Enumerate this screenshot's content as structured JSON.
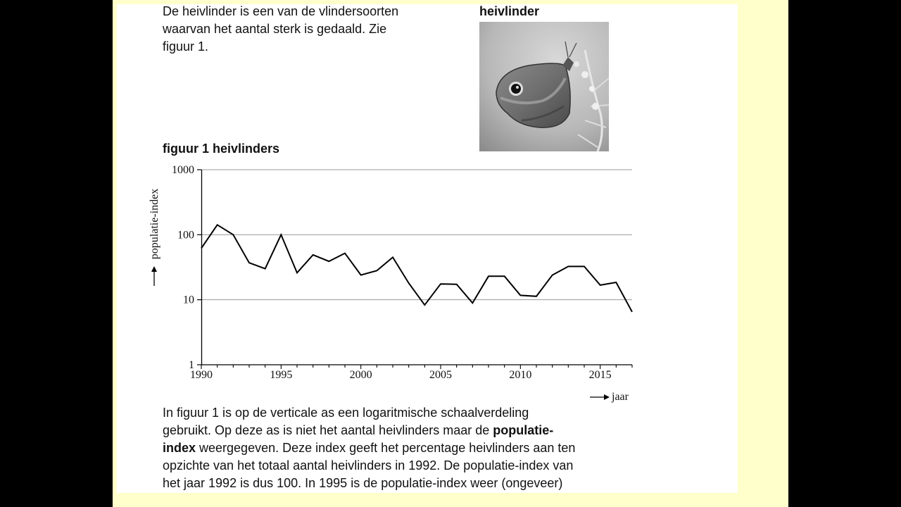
{
  "intro": {
    "lines": [
      "De heivlinder is een van de vlindersoorten",
      "waarvan het aantal sterk is gedaald. Zie",
      "figuur 1."
    ]
  },
  "photo": {
    "title": "heivlinder",
    "icon": "butterfly-photo"
  },
  "figure": {
    "title": "figuur 1 heivlinders"
  },
  "chart_data": {
    "type": "line",
    "ylabel": "populatie-index",
    "xlabel": "jaar",
    "y_scale": "log",
    "ylim": [
      1,
      1000
    ],
    "xlim": [
      1990,
      2017
    ],
    "y_ticks": [
      "1",
      "10",
      "100",
      "1000"
    ],
    "x_ticks": [
      "1990",
      "1995",
      "2000",
      "2005",
      "2010",
      "2015"
    ],
    "grid": "horizontal at 10, 100, 1000",
    "legend": "none",
    "series": [
      {
        "x": [
          1990,
          1991,
          1992,
          1993,
          1994,
          1995,
          1996,
          1997,
          1998,
          1999,
          2000,
          2001,
          2002,
          2003,
          2004,
          2005,
          2006,
          2007,
          2008,
          2009,
          2010,
          2011,
          2012,
          2013,
          2014,
          2015,
          2016,
          2017
        ],
        "values": [
          62,
          142,
          100,
          37,
          30,
          100,
          26,
          49,
          39,
          52,
          24,
          28,
          45,
          18,
          8.3,
          17.5,
          17.3,
          8.9,
          23,
          23,
          11.7,
          11.3,
          24,
          32.5,
          32.5,
          16.8,
          18.5,
          6.5
        ]
      }
    ]
  },
  "body": {
    "line1": "In figuur 1 is op de verticale as een logaritmische schaalverdeling",
    "line2_a": "gebruikt. Op deze as is niet het aantal heivlinders maar de ",
    "line2_b": "populatie-",
    "line3_a": "index",
    "line3_b": " weergegeven. Deze index geeft het percentage heivlinders aan ten",
    "line4": "opzichte van het totaal aantal heivlinders in 1992. De populatie-index van",
    "line5": "het jaar 1992 is dus 100. In 1995 is de populatie-index weer (ongeveer)"
  },
  "colors": {
    "frame": "#ffffcc",
    "background": "#000000",
    "page": "#ffffff",
    "line": "#000000",
    "grid": "#999999"
  }
}
